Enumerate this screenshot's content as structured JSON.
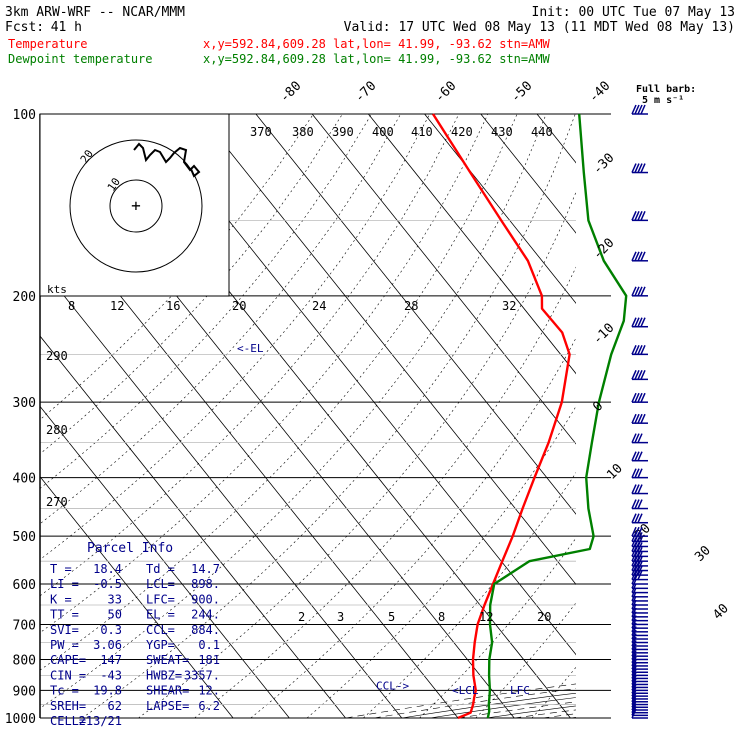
{
  "header": {
    "model": "3km ARW-WRF -- NCAR/MMM",
    "init": "Init: 00 UTC Tue 07 May 13",
    "fcst_label": "Fcst:",
    "fcst_value": "41 h",
    "valid": "Valid: 17 UTC Wed 08 May 13 (11 MDT Wed 08 May 13)",
    "temp_label": "Temperature",
    "temp_loc": "x,y=592.84,609.28   lat,lon= 41.99, -93.62  stn=AMW",
    "dew_label": "Dewpoint temperature",
    "dew_loc": "x,y=592.84,609.28   lat,lon= 41.99, -93.62  stn=AMW"
  },
  "colors": {
    "temperature": "#ff0000",
    "dewpoint": "#008000",
    "text": "#000000",
    "parcel_text": "#00008b",
    "barb": "#00008b",
    "grid": "#000000",
    "faint": "#bbbbbb"
  },
  "chart_data": {
    "type": "line",
    "subtype": "skew-T log-p sounding",
    "y_axis": {
      "scale": "log",
      "units": "hPa",
      "ticks": [
        100,
        200,
        300,
        400,
        500,
        600,
        700,
        800,
        900,
        1000
      ]
    },
    "isotherm_labels": [
      -80,
      -70,
      -60,
      -50,
      -40,
      -30,
      -20,
      -10,
      0,
      10,
      20,
      30,
      40
    ],
    "dry_adiabat_labels": [
      "370",
      "380",
      "390",
      "400",
      "410",
      "420",
      "430",
      "440",
      "290",
      "280",
      "270"
    ],
    "mixing_ratio_labels": [
      "2",
      "3",
      "5",
      "8",
      "12",
      "20"
    ],
    "series": [
      {
        "name": "Temperature",
        "color": "#ff0000",
        "points": [
          [
            1000,
            20.0
          ],
          [
            980,
            17.0
          ],
          [
            950,
            15.4
          ],
          [
            925,
            14.2
          ],
          [
            900,
            12.9
          ],
          [
            850,
            11.2
          ],
          [
            800,
            9.0
          ],
          [
            750,
            6.3
          ],
          [
            700,
            3.2
          ],
          [
            650,
            -0.8
          ],
          [
            600,
            -5.3
          ],
          [
            550,
            -10.2
          ],
          [
            500,
            -15.6
          ],
          [
            450,
            -21.3
          ],
          [
            400,
            -27.8
          ],
          [
            350,
            -35.3
          ],
          [
            300,
            -43.4
          ],
          [
            250,
            -51.6
          ],
          [
            230,
            -53.4
          ],
          [
            210,
            -53.2
          ],
          [
            200,
            -55.0
          ],
          [
            175,
            -57.5
          ],
          [
            150,
            -58.5
          ],
          [
            125,
            -59.8
          ],
          [
            100,
            -61.5
          ]
        ]
      },
      {
        "name": "Dewpoint temperature",
        "color": "#008000",
        "points": [
          [
            1000,
            14.7
          ],
          [
            975,
            13.5
          ],
          [
            950,
            12.6
          ],
          [
            925,
            11.5
          ],
          [
            900,
            10.4
          ],
          [
            850,
            8.4
          ],
          [
            800,
            6.1
          ],
          [
            750,
            3.2
          ],
          [
            700,
            1.0
          ],
          [
            650,
            -1.8
          ],
          [
            600,
            -5.5
          ],
          [
            550,
            -15.0
          ],
          [
            525,
            -27.5
          ],
          [
            500,
            -30.0
          ],
          [
            450,
            -33.0
          ],
          [
            400,
            -37.0
          ],
          [
            350,
            -43.0
          ],
          [
            300,
            -50.0
          ],
          [
            250,
            -59.0
          ],
          [
            220,
            -66.0
          ],
          [
            200,
            -70.0
          ],
          [
            175,
            -71.0
          ],
          [
            150,
            -74.0
          ],
          [
            125,
            -80.0
          ],
          [
            100,
            -87.5
          ]
        ]
      }
    ],
    "markers": [
      {
        "label": "<-EL",
        "p": 244
      },
      {
        "label": "<LCL",
        "p": 898
      },
      {
        "label": "LFC",
        "p": 900
      },
      {
        "label": "CCL->",
        "p": 884
      }
    ],
    "wind_barb_key": "Full barb:\n5 m s⁻¹",
    "hodograph": {
      "rings_kts": [
        10,
        20
      ],
      "ring_labels": [
        "10",
        "20"
      ],
      "kts_label": "kts",
      "speed_axis_labels": [
        "8",
        "12",
        "16",
        "20",
        "24",
        "28",
        "32"
      ]
    }
  },
  "parcel_info": {
    "title": "Parcel Info",
    "rows": [
      [
        "T  =",
        "18.4",
        "Td =",
        "14.7"
      ],
      [
        "LI =",
        "-0.5",
        "LCL=",
        "898."
      ],
      [
        "K  =",
        "33",
        "LFC=",
        "900."
      ],
      [
        "TT =",
        "50",
        "EL =",
        "244."
      ],
      [
        "SVI=",
        "0.3",
        "CCL=",
        "884."
      ],
      [
        "PW =",
        "3.06",
        "YGP=",
        "0.1"
      ],
      [
        "CAPE=",
        "147",
        "SWEAT=",
        "181"
      ],
      [
        "CIN =",
        "-43",
        "HWBZ=",
        "3357."
      ],
      [
        "Tc =",
        "19.8",
        "SHEAR=",
        "12."
      ],
      [
        "SREH=",
        "62",
        "LAPSE=",
        "6.2"
      ],
      [
        "CELL=",
        "213/21",
        "",
        ""
      ]
    ]
  }
}
